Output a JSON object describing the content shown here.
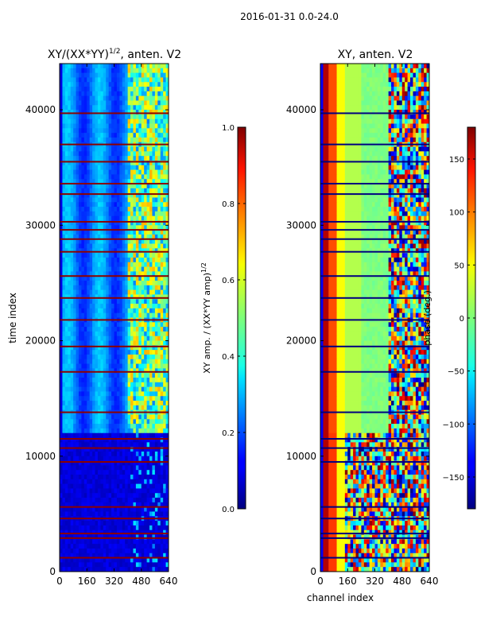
{
  "figure": {
    "suptitle": "2016-01-31 0.0-24.0",
    "shared_xlabel": "channel index"
  },
  "chart_data": [
    {
      "type": "heatmap",
      "title_text": "XY/(XX*YY)",
      "title_superscript": "1/2",
      "title_suffix": ", anten. V2",
      "ylabel": "time index",
      "x_range": [
        0,
        640
      ],
      "y_range": [
        0,
        44000
      ],
      "x_ticks": [
        0,
        160,
        320,
        480,
        640
      ],
      "x_tick_labels": [
        "0",
        "160",
        "320",
        "480",
        "640"
      ],
      "y_ticks": [
        0,
        10000,
        20000,
        30000,
        40000
      ],
      "y_tick_labels": [
        "0",
        "10000",
        "20000",
        "30000",
        "40000"
      ],
      "colormap": "jet",
      "colorbar": {
        "label_text": "XY amp. / (XX*YY amp)",
        "label_superscript": "1/2",
        "range": [
          0.0,
          1.0
        ],
        "ticks": [
          0.0,
          0.2,
          0.4,
          0.6,
          0.8,
          1.0
        ],
        "tick_labels": [
          "0.0",
          "0.2",
          "0.4",
          "0.6",
          "0.8",
          "1.0"
        ]
      },
      "flagged_rows": [
        1200,
        2900,
        3300,
        4600,
        5600,
        9500,
        10700,
        11500,
        13800,
        17300,
        19500,
        21800,
        23700,
        25600,
        27700,
        28800,
        29600,
        30300,
        32700,
        33600,
        35500,
        37000,
        39700
      ]
    },
    {
      "type": "heatmap",
      "title_text": "XY, anten. V2",
      "x_range": [
        0,
        640
      ],
      "y_range": [
        0,
        44000
      ],
      "x_ticks": [
        0,
        160,
        320,
        480,
        640
      ],
      "x_tick_labels": [
        "0",
        "160",
        "320",
        "480",
        "640"
      ],
      "y_ticks": [
        0,
        10000,
        20000,
        30000,
        40000
      ],
      "y_tick_labels": [
        "0",
        "10000",
        "20000",
        "30000",
        "40000"
      ],
      "colormap": "jet",
      "colorbar": {
        "label_text": "phase (deg.)",
        "range": [
          -180,
          180
        ],
        "ticks": [
          -150,
          -100,
          -50,
          0,
          50,
          100,
          150
        ],
        "tick_labels": [
          "−150",
          "−100",
          "−50",
          "0",
          "50",
          "100",
          "150"
        ]
      },
      "flagged_rows": [
        1200,
        2900,
        3300,
        4600,
        5600,
        9500,
        10700,
        11500,
        13800,
        17300,
        19500,
        21800,
        23700,
        25600,
        27700,
        28800,
        29600,
        30300,
        32700,
        33600,
        35500,
        37000,
        39700
      ]
    }
  ]
}
